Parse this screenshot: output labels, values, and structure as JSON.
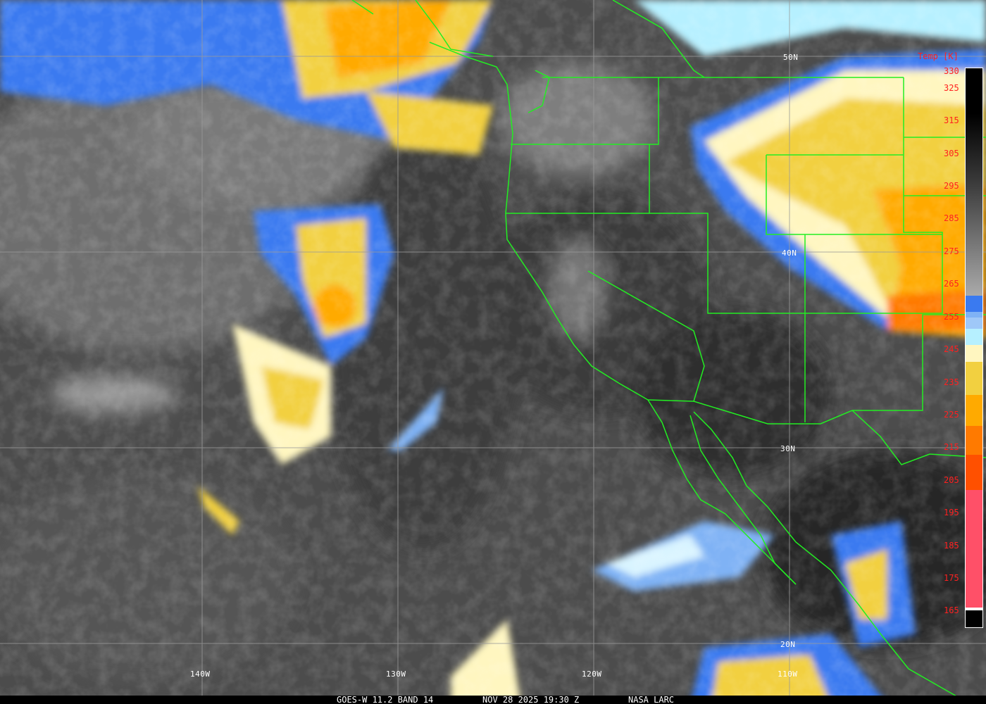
{
  "caption": {
    "satellite": "GOES-W 11.2 BAND 14",
    "datetime": "NOV 28 2025 19:30 Z",
    "source": "NASA LARC"
  },
  "legend": {
    "title": "Temp [K]",
    "ticks": [
      "330",
      "325",
      "315",
      "305",
      "295",
      "285",
      "275",
      "265",
      "255",
      "245",
      "235",
      "225",
      "215",
      "205",
      "195",
      "185",
      "175",
      "165"
    ],
    "colors": {
      "blue": "#3a7af0",
      "light_blue": "#7fb2f5",
      "cyan": "#b6f0ff",
      "pale_yellow": "#fff6c0",
      "yellow": "#f2d040",
      "orange_yellow": "#ffaa00",
      "orange": "#ff7a00",
      "red_orange": "#ff5000",
      "pink": "#ff5068"
    }
  },
  "grid": {
    "lat_labels": [
      "50N",
      "40N",
      "30N",
      "20N"
    ],
    "lon_labels": [
      "140W",
      "130W",
      "120W",
      "110W"
    ]
  },
  "borders_color": "#22ee22"
}
